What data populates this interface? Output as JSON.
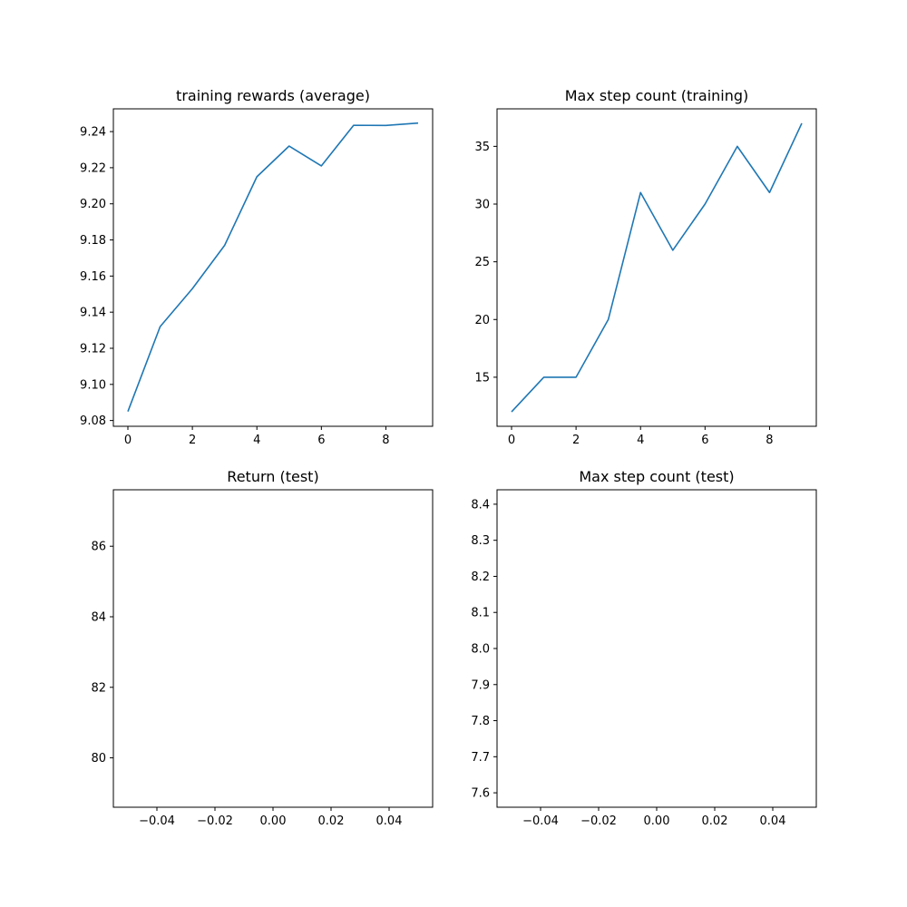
{
  "chart_data": [
    {
      "type": "line",
      "title": "training rewards (average)",
      "xlabel": "",
      "ylabel": "",
      "xlim": [
        -0.45,
        9.45
      ],
      "ylim": [
        9.0768,
        9.2526
      ],
      "xticks": [
        0,
        2,
        4,
        6,
        8
      ],
      "xtick_labels": [
        "0",
        "2",
        "4",
        "6",
        "8"
      ],
      "yticks": [
        9.08,
        9.1,
        9.12,
        9.14,
        9.16,
        9.18,
        9.2,
        9.22,
        9.24
      ],
      "ytick_labels": [
        "9.08",
        "9.10",
        "9.12",
        "9.14",
        "9.16",
        "9.18",
        "9.20",
        "9.22",
        "9.24"
      ],
      "grid": false,
      "series": [
        {
          "color": "#1f77b4",
          "x": [
            0,
            1,
            2,
            3,
            4,
            5,
            6,
            7,
            8,
            9
          ],
          "values": [
            9.085,
            9.132,
            9.153,
            9.177,
            9.215,
            9.232,
            9.221,
            9.2435,
            9.2434,
            9.2447
          ]
        }
      ]
    },
    {
      "type": "line",
      "title": "Max step count (training)",
      "xlabel": "",
      "ylabel": "",
      "xlim": [
        -0.45,
        9.45
      ],
      "ylim": [
        10.75,
        38.25
      ],
      "xticks": [
        0,
        2,
        4,
        6,
        8
      ],
      "xtick_labels": [
        "0",
        "2",
        "4",
        "6",
        "8"
      ],
      "yticks": [
        15,
        20,
        25,
        30,
        35
      ],
      "ytick_labels": [
        "15",
        "20",
        "25",
        "30",
        "35"
      ],
      "grid": false,
      "series": [
        {
          "color": "#1f77b4",
          "x": [
            0,
            1,
            2,
            3,
            4,
            5,
            6,
            7,
            8,
            9
          ],
          "values": [
            12,
            15,
            15,
            20,
            31,
            26,
            30,
            35,
            31,
            37
          ]
        }
      ]
    },
    {
      "type": "line",
      "title": "Return (test)",
      "xlabel": "",
      "ylabel": "",
      "xlim": [
        -0.055,
        0.055
      ],
      "ylim": [
        78.6,
        87.6
      ],
      "xticks": [
        -0.04,
        -0.02,
        0.0,
        0.02,
        0.04
      ],
      "xtick_labels": [
        "−0.04",
        "−0.02",
        "0.00",
        "0.02",
        "0.04"
      ],
      "yticks": [
        80,
        82,
        84,
        86
      ],
      "ytick_labels": [
        "80",
        "82",
        "84",
        "86"
      ],
      "grid": false,
      "series": []
    },
    {
      "type": "line",
      "title": "Max step count (test)",
      "xlabel": "",
      "ylabel": "",
      "xlim": [
        -0.055,
        0.055
      ],
      "ylim": [
        7.56,
        8.44
      ],
      "xticks": [
        -0.04,
        -0.02,
        0.0,
        0.02,
        0.04
      ],
      "xtick_labels": [
        "−0.04",
        "−0.02",
        "0.00",
        "0.02",
        "0.04"
      ],
      "yticks": [
        7.6,
        7.7,
        7.8,
        7.9,
        8.0,
        8.1,
        8.2,
        8.3,
        8.4
      ],
      "ytick_labels": [
        "7.6",
        "7.7",
        "7.8",
        "7.9",
        "8.0",
        "8.1",
        "8.2",
        "8.3",
        "8.4"
      ],
      "grid": false,
      "series": []
    }
  ]
}
